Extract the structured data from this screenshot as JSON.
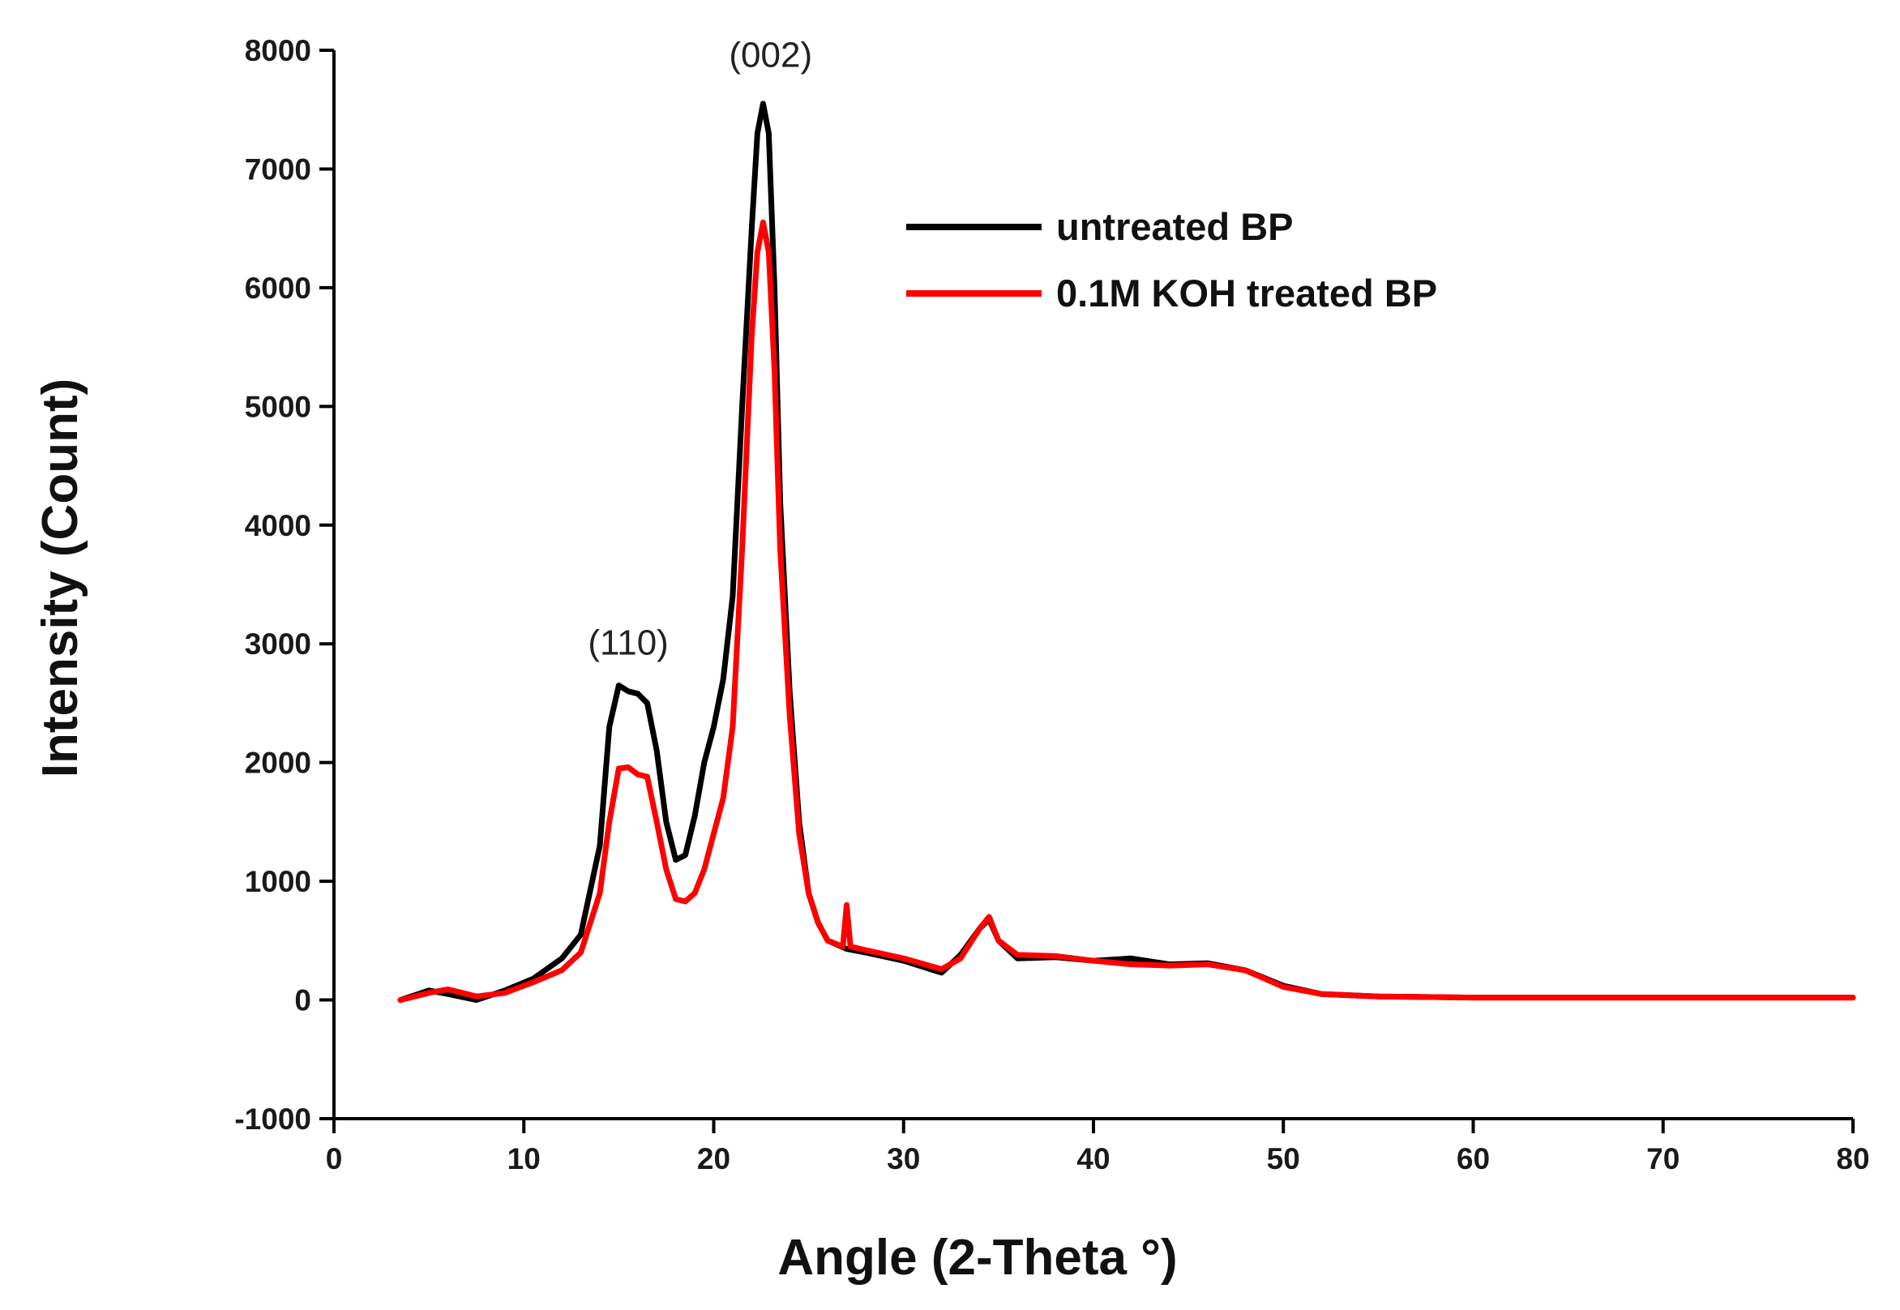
{
  "chart_data": {
    "type": "line",
    "title": "",
    "xlabel": "Angle (2-Theta °)",
    "ylabel": "Intensity (Count)",
    "xlim": [
      0,
      80
    ],
    "ylim": [
      -1000,
      8000
    ],
    "xticks": [
      0,
      10,
      20,
      30,
      40,
      50,
      60,
      70,
      80
    ],
    "xtick_labels": [
      "0",
      "10",
      "20",
      "30",
      "40",
      "50",
      "60",
      "70",
      "80"
    ],
    "yticks": [
      -1000,
      0,
      1000,
      2000,
      3000,
      4000,
      5000,
      6000,
      7000,
      8000
    ],
    "ytick_labels": [
      "-1000",
      "0",
      "1000",
      "2000",
      "3000",
      "4000",
      "5000",
      "6000",
      "7000",
      "8000"
    ],
    "grid": false,
    "legend_position": "top-right",
    "annotations": [
      {
        "text": "(110)",
        "x": 15.5,
        "y": 2650
      },
      {
        "text": "(002)",
        "x": 23.0,
        "y": 7600
      }
    ],
    "series": [
      {
        "name": "untreated BP",
        "color": "#000000",
        "x": [
          3.5,
          5,
          6,
          7.5,
          9,
          10.5,
          12,
          13,
          14,
          14.5,
          15,
          15.5,
          16,
          16.5,
          17,
          17.5,
          18,
          18.5,
          19,
          19.5,
          20,
          20.5,
          21,
          21.5,
          22,
          22.3,
          22.6,
          22.9,
          23.2,
          23.5,
          24,
          24.5,
          25,
          25.5,
          26,
          27,
          28,
          30,
          32,
          33,
          34,
          34.5,
          35,
          36,
          38,
          40,
          42,
          44,
          46,
          48,
          50,
          52,
          55,
          60,
          65,
          70,
          75,
          80
        ],
        "y": [
          0,
          80,
          50,
          0,
          80,
          180,
          350,
          550,
          1300,
          2300,
          2650,
          2600,
          2580,
          2500,
          2100,
          1500,
          1180,
          1220,
          1550,
          2000,
          2300,
          2700,
          3400,
          5000,
          6500,
          7300,
          7550,
          7300,
          6000,
          4200,
          2600,
          1500,
          900,
          650,
          500,
          430,
          400,
          330,
          230,
          380,
          600,
          680,
          500,
          350,
          360,
          330,
          350,
          300,
          310,
          250,
          120,
          50,
          30,
          20,
          20,
          20,
          20,
          20
        ]
      },
      {
        "name": "0.1M KOH treated BP",
        "color": "#ff0000",
        "x": [
          3.5,
          5,
          6,
          7.5,
          9,
          10.5,
          12,
          13,
          14,
          14.5,
          15,
          15.5,
          16,
          16.5,
          17,
          17.5,
          18,
          18.5,
          19,
          19.5,
          20,
          20.5,
          21,
          21.5,
          22,
          22.3,
          22.6,
          22.9,
          23.2,
          23.5,
          24,
          24.5,
          25,
          25.5,
          26,
          26.8,
          27,
          27.2,
          28,
          30,
          32,
          33,
          34,
          34.5,
          35,
          36,
          38,
          40,
          42,
          44,
          46,
          48,
          50,
          52,
          55,
          60,
          65,
          70,
          75,
          80
        ],
        "y": [
          0,
          60,
          90,
          30,
          60,
          150,
          250,
          400,
          900,
          1500,
          1950,
          1960,
          1900,
          1880,
          1500,
          1100,
          850,
          830,
          900,
          1100,
          1400,
          1700,
          2300,
          3800,
          5600,
          6300,
          6550,
          6300,
          5300,
          3800,
          2400,
          1400,
          900,
          650,
          500,
          450,
          800,
          450,
          420,
          350,
          260,
          350,
          600,
          700,
          500,
          380,
          370,
          330,
          300,
          290,
          300,
          250,
          110,
          50,
          30,
          20,
          20,
          20,
          20,
          20
        ]
      }
    ]
  }
}
